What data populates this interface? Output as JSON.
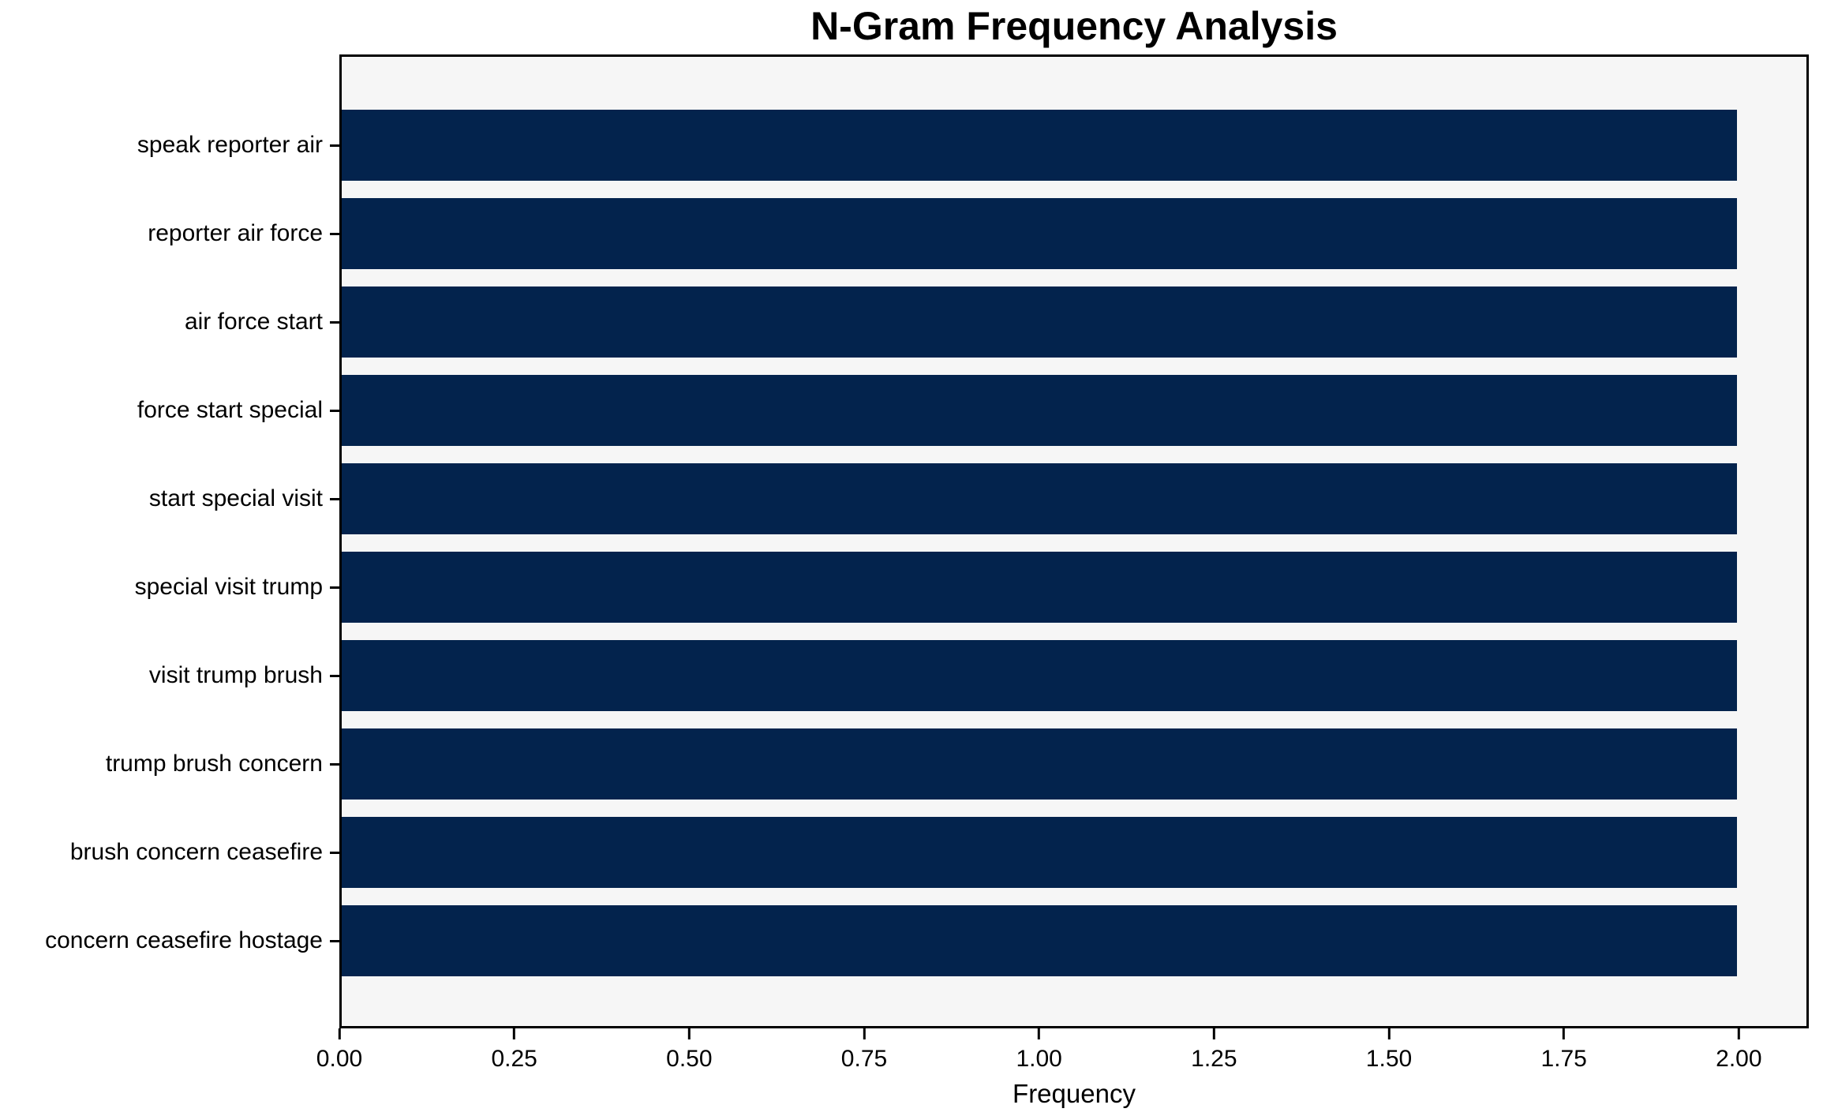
{
  "chart_data": {
    "type": "bar",
    "orientation": "horizontal",
    "title": "N-Gram Frequency Analysis",
    "xlabel": "Frequency",
    "categories": [
      "speak reporter air",
      "reporter air force",
      "air force start",
      "force start special",
      "start special visit",
      "special visit trump",
      "visit trump brush",
      "trump brush concern",
      "brush concern ceasefire",
      "concern ceasefire hostage"
    ],
    "values": [
      2,
      2,
      2,
      2,
      2,
      2,
      2,
      2,
      2,
      2
    ],
    "xlim": [
      0,
      2.1
    ],
    "xticks": [
      {
        "value": 0.0,
        "label": "0.00"
      },
      {
        "value": 0.25,
        "label": "0.25"
      },
      {
        "value": 0.5,
        "label": "0.50"
      },
      {
        "value": 0.75,
        "label": "0.75"
      },
      {
        "value": 1.0,
        "label": "1.00"
      },
      {
        "value": 1.25,
        "label": "1.25"
      },
      {
        "value": 1.5,
        "label": "1.50"
      },
      {
        "value": 1.75,
        "label": "1.75"
      },
      {
        "value": 2.0,
        "label": "2.00"
      }
    ],
    "grid": false,
    "legend": false,
    "bar_height_fraction": 0.8,
    "colors": {
      "bar": "#03234d",
      "plot_background": "#f6f6f6",
      "figure_background": "#ffffff",
      "axis": "#000000",
      "text": "#000000"
    }
  }
}
